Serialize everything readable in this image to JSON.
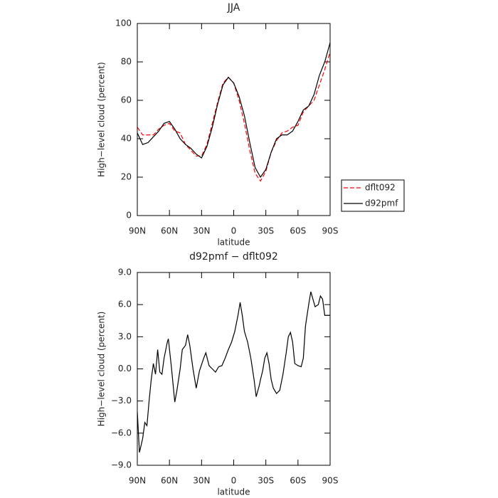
{
  "chart_data": [
    {
      "type": "line",
      "title": "JJA",
      "x_label": "latitude",
      "y_label": "High−level cloud (percent)",
      "x": [
        90,
        85,
        80,
        75,
        70,
        65,
        60,
        55,
        50,
        45,
        40,
        35,
        30,
        25,
        20,
        15,
        10,
        5,
        0,
        -5,
        -10,
        -15,
        -20,
        -25,
        -30,
        -35,
        -40,
        -45,
        -50,
        -55,
        -60,
        -65,
        -70,
        -75,
        -80,
        -85,
        -90
      ],
      "series": [
        {
          "name": "dflt092",
          "color": "#ff0000",
          "linestyle": "dashed",
          "values": [
            46,
            42,
            42,
            42,
            45,
            47,
            48,
            44,
            43,
            37,
            34,
            31,
            31,
            37,
            48,
            59,
            69,
            72,
            69,
            60,
            48,
            34,
            22,
            18,
            23,
            33,
            39,
            43,
            44,
            46,
            47,
            54,
            57,
            60,
            68,
            76,
            85
          ]
        },
        {
          "name": "d92pmf",
          "color": "#000000",
          "linestyle": "solid",
          "values": [
            43,
            37,
            38,
            41,
            44,
            48,
            49,
            45,
            40,
            37,
            35,
            32,
            30,
            36,
            46,
            58,
            68,
            72,
            69,
            62,
            52,
            38,
            25,
            20,
            24,
            33,
            40,
            42,
            42,
            44,
            49,
            55,
            57,
            63,
            73,
            80,
            90
          ]
        }
      ],
      "xlim": [
        90,
        -90
      ],
      "xticks": [
        {
          "value": 90,
          "label": "90N"
        },
        {
          "value": 60,
          "label": "60N"
        },
        {
          "value": 30,
          "label": "30N"
        },
        0,
        {
          "value": -30,
          "label": "30S"
        },
        {
          "value": -60,
          "label": "60S"
        },
        {
          "value": -90,
          "label": "90S"
        }
      ],
      "ylim": [
        0,
        100
      ],
      "yticks": [
        0,
        20,
        40,
        60,
        80,
        100
      ],
      "legend": "outside-right"
    },
    {
      "type": "line",
      "title": "d92pmf − dflt092",
      "x_label": "latitude",
      "y_label": "High−level cloud (percent)",
      "x": [
        90,
        88,
        85,
        83,
        81,
        79,
        77,
        75,
        73,
        71,
        69,
        67,
        65,
        62,
        61,
        58,
        55,
        53,
        50,
        48,
        45,
        43,
        41,
        38,
        35,
        32,
        28,
        26,
        23,
        20,
        17,
        14,
        11,
        8,
        5,
        2,
        -1,
        -4,
        -6,
        -8,
        -10,
        -13,
        -16,
        -19,
        -21,
        -24,
        -25,
        -27,
        -29,
        -31,
        -33,
        -35,
        -37,
        -40,
        -43,
        -46,
        -49,
        -51,
        -53,
        -55,
        -57,
        -60,
        -63,
        -65,
        -67,
        -70,
        -72,
        -74,
        -76,
        -79,
        -81,
        -83,
        -85,
        -90
      ],
      "series": [
        {
          "name": "d92pmf − dflt092",
          "color": "#000000",
          "linestyle": "solid",
          "values": [
            -4,
            -7.8,
            -6.5,
            -5,
            -5.3,
            -3,
            -1,
            0.5,
            -0.5,
            1.8,
            -0.3,
            -0.5,
            1,
            2.5,
            2.8,
            0,
            -3.1,
            -2,
            0,
            1.8,
            2.2,
            3.2,
            2.2,
            0,
            -1.8,
            -0.2,
            1,
            1.5,
            0.3,
            0,
            -0.3,
            0.2,
            0.3,
            1,
            1.8,
            2.5,
            3.5,
            5,
            6.2,
            5,
            3.5,
            2.5,
            1,
            -1,
            -2.6,
            -1.5,
            -1,
            -0.2,
            1,
            1.5,
            0.5,
            -1,
            -1.8,
            -2.3,
            -2,
            -0.5,
            1.5,
            3,
            3.4,
            2.5,
            0.5,
            0.3,
            0.2,
            1,
            4,
            6,
            7.2,
            6.5,
            5.8,
            6,
            6.8,
            6.5,
            5,
            5
          ]
        }
      ],
      "xlim": [
        90,
        -90
      ],
      "xticks": [
        {
          "value": 90,
          "label": "90N"
        },
        {
          "value": 60,
          "label": "60N"
        },
        {
          "value": 30,
          "label": "30N"
        },
        0,
        {
          "value": -30,
          "label": "30S"
        },
        {
          "value": -60,
          "label": "60S"
        },
        {
          "value": -90,
          "label": "90S"
        }
      ],
      "ylim": [
        -9,
        9
      ],
      "yticks": [
        {
          "value": -9,
          "label": "−9.0"
        },
        {
          "value": -6,
          "label": "−6.0"
        },
        {
          "value": -3,
          "label": "−3.0"
        },
        {
          "value": 0,
          "label": "0.0"
        },
        {
          "value": 3,
          "label": "3.0"
        },
        {
          "value": 6,
          "label": "6.0"
        },
        {
          "value": 9,
          "label": "9.0"
        }
      ]
    }
  ]
}
